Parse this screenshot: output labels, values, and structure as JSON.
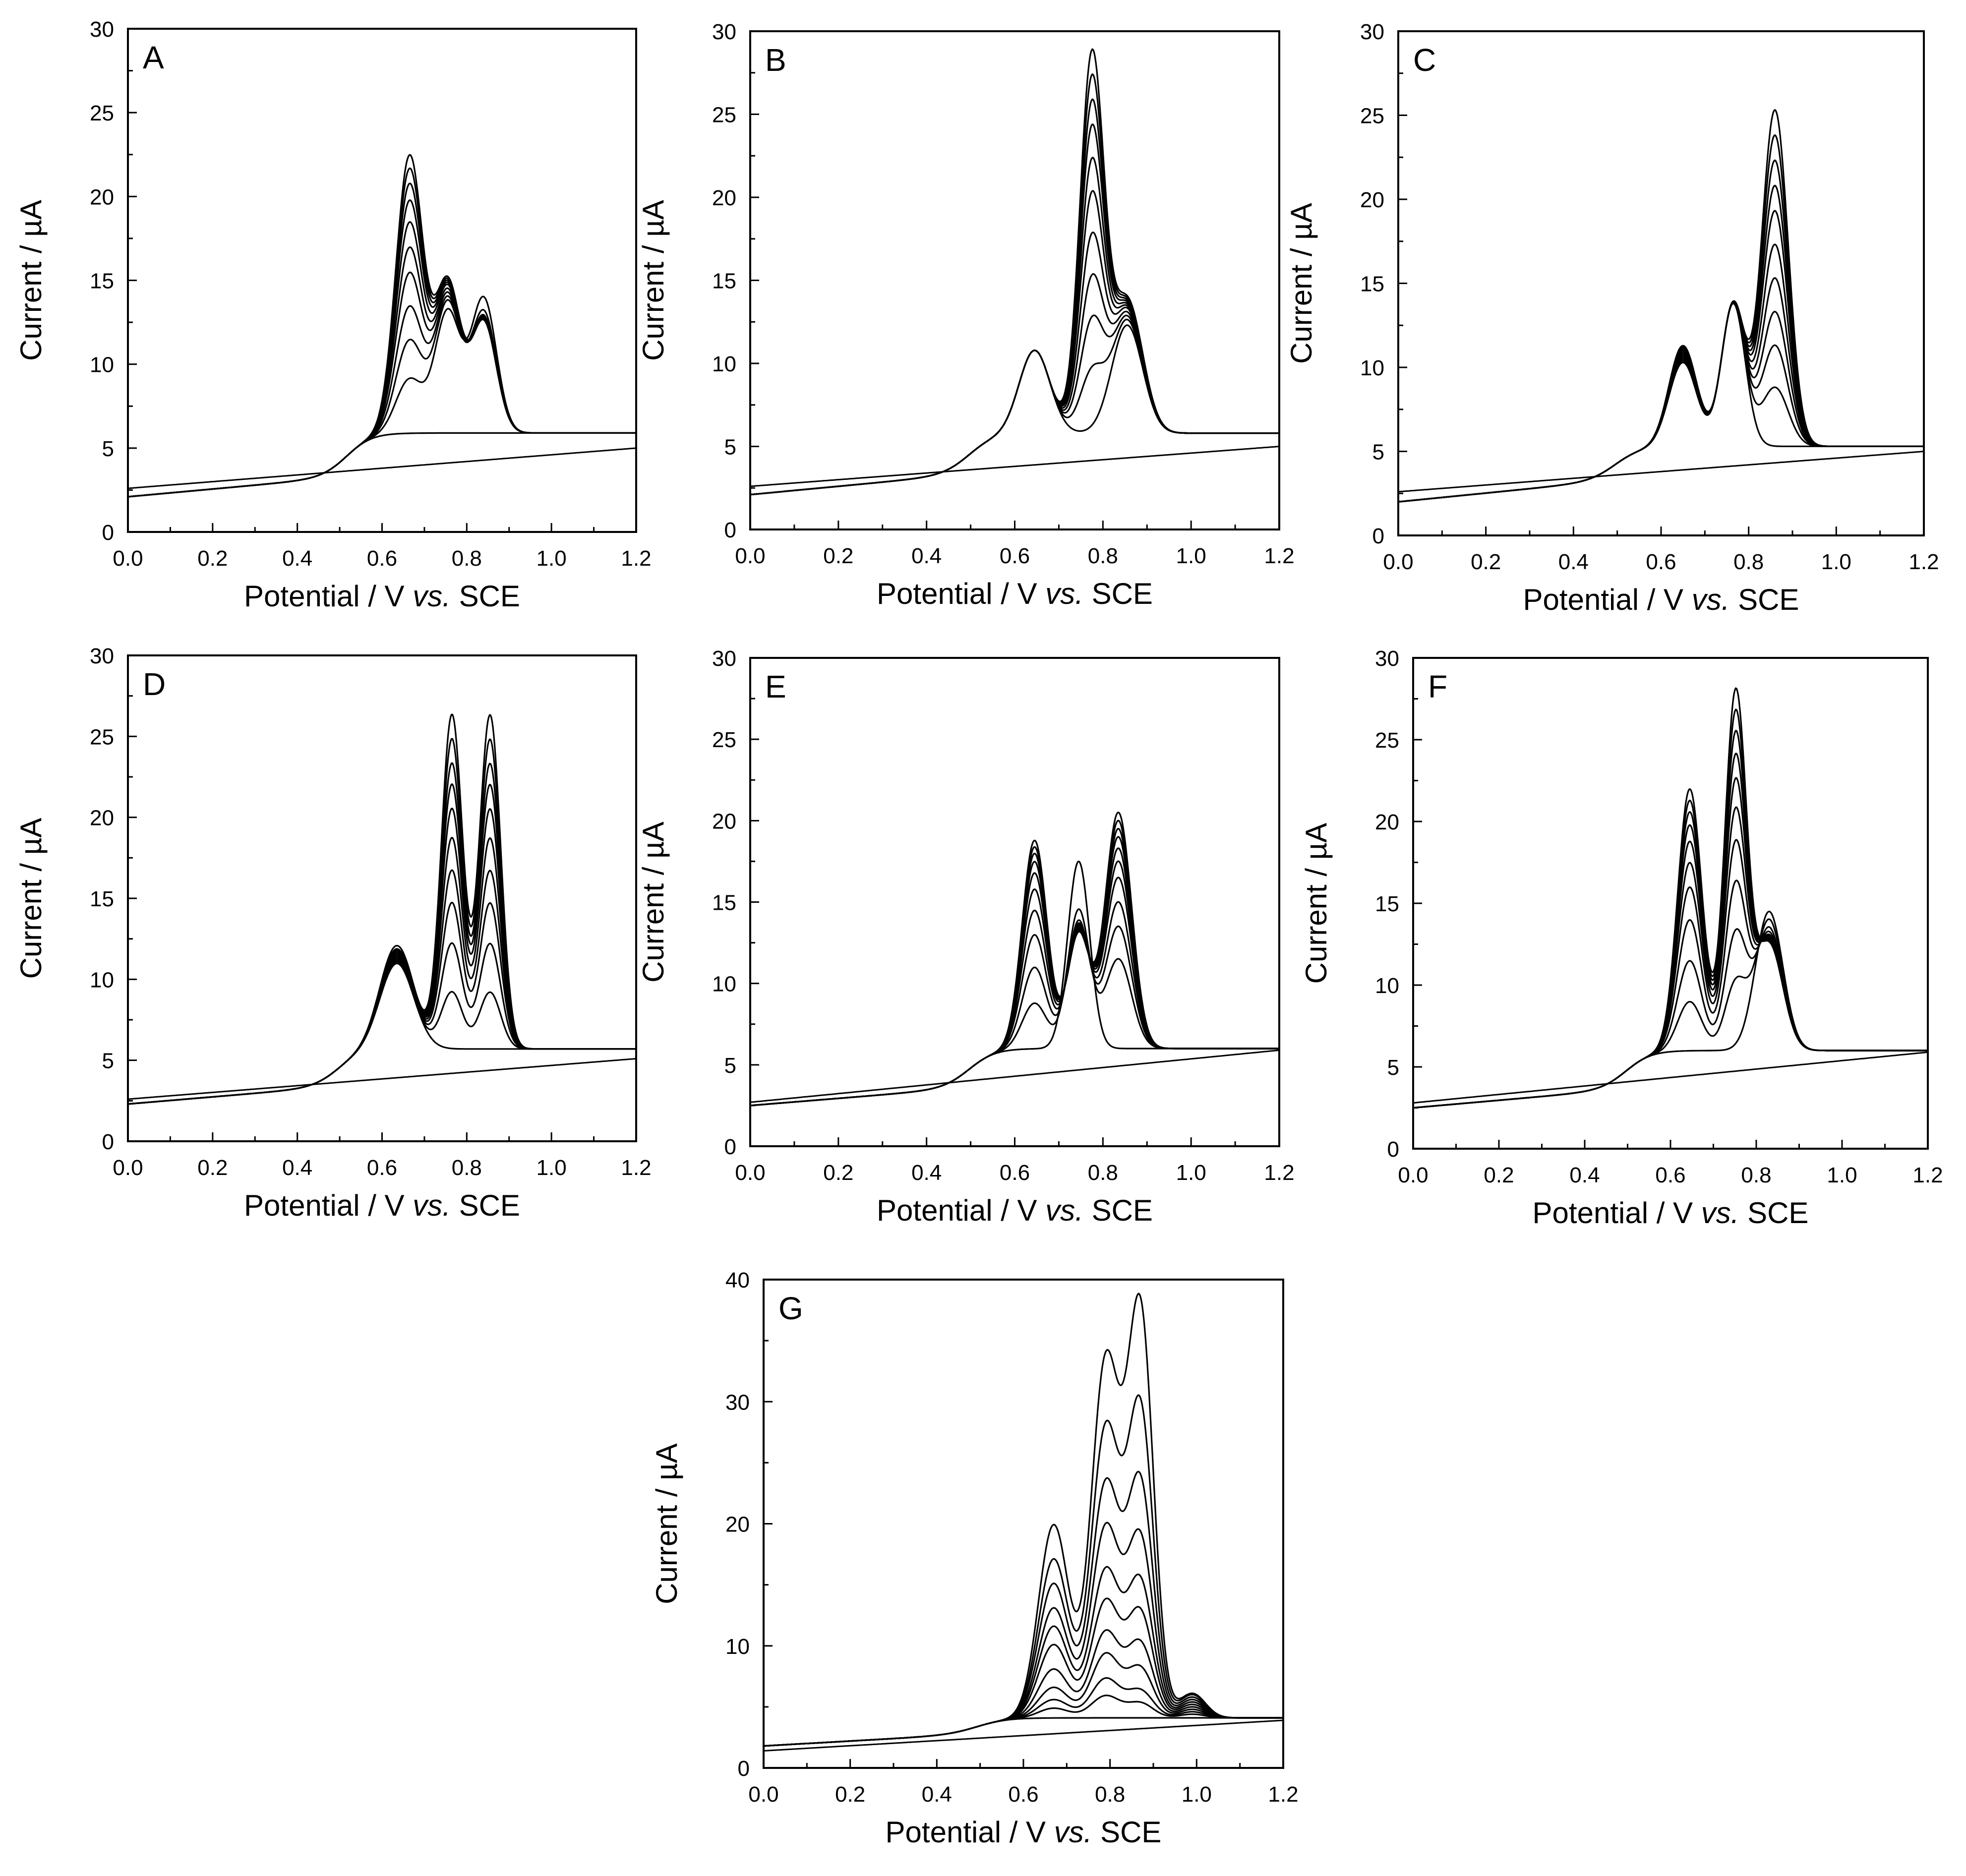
{
  "figure": {
    "xlabel_prefix": "Potential / V ",
    "xlabel_italic": "vs.",
    "xlabel_suffix": " SCE",
    "ylabel": "Current / µA",
    "line_color": "#000000",
    "background": "#ffffff"
  },
  "chart_data": [
    {
      "type": "line",
      "panel": "A",
      "xlim": [
        0.0,
        1.2
      ],
      "ylim": [
        0,
        30
      ],
      "xticks": [
        "0.0",
        "0.2",
        "0.4",
        "0.6",
        "0.8",
        "1.0",
        "1.2"
      ],
      "yticks": [
        "0",
        "5",
        "10",
        "15",
        "20",
        "25",
        "30"
      ],
      "baseline": {
        "start": 2.6,
        "end": 5.0,
        "slope_x0": 0.5,
        "sharp": 0,
        "exp": 0
      },
      "onset": {
        "center": 0.52,
        "width": 0.03,
        "plateau_end": 5.9,
        "y0": 2.1,
        "slope": 2.3
      },
      "series_count": 11,
      "peaks": [
        {
          "x": 0.665,
          "sigma": 0.032,
          "heights": [
            0,
            3.2,
            5.5,
            7.5,
            9.5,
            11.0,
            12.5,
            13.8,
            14.8,
            15.7,
            16.5
          ]
        },
        {
          "x": 0.755,
          "sigma": 0.03,
          "heights": [
            0,
            7.2,
            7.7,
            7.9,
            8.1,
            8.3,
            8.5,
            8.6,
            8.7,
            8.8,
            8.9
          ]
        },
        {
          "x": 0.84,
          "sigma": 0.03,
          "heights": [
            0,
            8.0,
            7.2,
            6.9,
            6.8,
            6.7,
            6.6,
            6.6,
            6.6,
            6.6,
            6.6
          ]
        }
      ]
    },
    {
      "type": "line",
      "panel": "B",
      "xlim": [
        0.0,
        1.2
      ],
      "ylim": [
        0,
        30
      ],
      "xticks": [
        "0.0",
        "0.2",
        "0.4",
        "0.6",
        "0.8",
        "1.0",
        "1.2"
      ],
      "yticks": [
        "0",
        "5",
        "10",
        "15",
        "20",
        "25",
        "30"
      ],
      "baseline": {
        "start": 2.6,
        "end": 5.0,
        "slope_x0": 0.5,
        "sharp": 0,
        "exp": 0
      },
      "onset": {
        "center": 0.5,
        "width": 0.03,
        "plateau_end": 5.8,
        "y0": 2.1,
        "slope": 2.5
      },
      "series_count": 11,
      "peaks": [
        {
          "x": 0.645,
          "sigma": 0.035,
          "heights": [
            5.0,
            5.0,
            5.0,
            5.0,
            5.0,
            5.0,
            5.0,
            5.0,
            5.0,
            5.0,
            5.0
          ]
        },
        {
          "x": 0.775,
          "sigma": 0.027,
          "heights": [
            0,
            3.5,
            6.5,
            9.0,
            11.5,
            14.0,
            16.0,
            18.0,
            19.5,
            21.0,
            22.5
          ]
        },
        {
          "x": 0.855,
          "sigma": 0.035,
          "heights": [
            6.5,
            6.8,
            7.0,
            7.2,
            7.4,
            7.5,
            7.6,
            7.7,
            7.8,
            7.9,
            8.0
          ]
        }
      ]
    },
    {
      "type": "line",
      "panel": "C",
      "xlim": [
        0.0,
        1.2
      ],
      "ylim": [
        0,
        30
      ],
      "xticks": [
        "0.0",
        "0.2",
        "0.4",
        "0.6",
        "0.8",
        "1.0",
        "1.2"
      ],
      "yticks": [
        "0",
        "5",
        "10",
        "15",
        "20",
        "25",
        "30"
      ],
      "baseline": {
        "start": 2.6,
        "end": 5.0,
        "slope_x0": 0.5,
        "sharp": 0,
        "exp": 0
      },
      "onset": {
        "center": 0.5,
        "width": 0.03,
        "plateau_end": 5.3,
        "y0": 2.0,
        "slope": 2.6
      },
      "series_count": 11,
      "peaks": [
        {
          "x": 0.65,
          "sigma": 0.032,
          "heights": [
            5.0,
            5.1,
            5.2,
            5.3,
            5.4,
            5.5,
            5.6,
            5.7,
            5.8,
            5.9,
            6.0
          ]
        },
        {
          "x": 0.765,
          "sigma": 0.027,
          "heights": [
            8.5,
            8.5,
            8.5,
            8.5,
            8.5,
            8.5,
            8.5,
            8.5,
            8.5,
            8.5,
            8.5
          ]
        },
        {
          "x": 0.86,
          "sigma": 0.03,
          "heights": [
            0,
            3.5,
            6.0,
            8.0,
            10.0,
            12.0,
            14.0,
            15.5,
            17.0,
            18.5,
            20.0
          ]
        }
      ]
    },
    {
      "type": "line",
      "panel": "D",
      "xlim": [
        0.0,
        1.2
      ],
      "ylim": [
        0,
        30
      ],
      "xticks": [
        "0.0",
        "0.2",
        "0.4",
        "0.6",
        "0.8",
        "1.0",
        "1.2"
      ],
      "yticks": [
        "0",
        "5",
        "10",
        "15",
        "20",
        "25",
        "30"
      ],
      "baseline": {
        "start": 2.6,
        "end": 5.1,
        "slope_x0": 0.5,
        "sharp": 0,
        "exp": 0
      },
      "onset": {
        "center": 0.5,
        "width": 0.03,
        "plateau_end": 5.7,
        "y0": 2.3,
        "slope": 2.2
      },
      "series_count": 11,
      "peaks": [
        {
          "x": 0.635,
          "sigma": 0.04,
          "heights": [
            5.3,
            5.4,
            5.5,
            5.6,
            5.7,
            5.8,
            5.9,
            6.0,
            6.1,
            6.2,
            6.4
          ]
        },
        {
          "x": 0.765,
          "sigma": 0.025,
          "heights": [
            0,
            3.5,
            6.5,
            9.0,
            11.0,
            13.0,
            14.8,
            16.3,
            17.6,
            19.1,
            20.6
          ]
        },
        {
          "x": 0.855,
          "sigma": 0.025,
          "heights": [
            0,
            3.5,
            6.5,
            9.0,
            11.0,
            13.0,
            14.8,
            16.3,
            17.6,
            19.1,
            20.6
          ]
        }
      ]
    },
    {
      "type": "line",
      "panel": "E",
      "xlim": [
        0.0,
        1.2
      ],
      "ylim": [
        0,
        30
      ],
      "xticks": [
        "0.0",
        "0.2",
        "0.4",
        "0.6",
        "0.8",
        "1.0",
        "1.2"
      ],
      "yticks": [
        "0",
        "5",
        "10",
        "15",
        "20",
        "25",
        "30"
      ],
      "baseline": {
        "start": 2.7,
        "end": 5.9,
        "slope_x0": 0.5,
        "sharp": 0,
        "exp": 0
      },
      "onset": {
        "center": 0.5,
        "width": 0.03,
        "plateau_end": 6.0,
        "y0": 2.5,
        "slope": 2.2
      },
      "series_count": 11,
      "peaks": [
        {
          "x": 0.645,
          "sigma": 0.028,
          "heights": [
            0,
            2.8,
            5.0,
            7.0,
            8.5,
            9.8,
            10.8,
            11.5,
            12.0,
            12.4,
            12.8
          ]
        },
        {
          "x": 0.745,
          "sigma": 0.025,
          "heights": [
            11.5,
            8.5,
            7.8,
            7.6,
            7.5,
            7.4,
            7.3,
            7.2,
            7.1,
            7.0,
            7.0
          ]
        },
        {
          "x": 0.835,
          "sigma": 0.03,
          "heights": [
            0,
            5.5,
            7.5,
            9.0,
            10.5,
            11.5,
            12.3,
            13.0,
            13.5,
            14.0,
            14.5
          ]
        }
      ]
    },
    {
      "type": "line",
      "panel": "F",
      "xlim": [
        0.0,
        1.2
      ],
      "ylim": [
        0,
        30
      ],
      "xticks": [
        "0.0",
        "0.2",
        "0.4",
        "0.6",
        "0.8",
        "1.0",
        "1.2"
      ],
      "yticks": [
        "0",
        "5",
        "10",
        "15",
        "20",
        "25",
        "30"
      ],
      "baseline": {
        "start": 2.8,
        "end": 5.9,
        "slope_x0": 0.5,
        "sharp": 0,
        "exp": 0
      },
      "onset": {
        "center": 0.5,
        "width": 0.03,
        "plateau_end": 6.0,
        "y0": 2.5,
        "slope": 2.3
      },
      "series_count": 11,
      "peaks": [
        {
          "x": 0.645,
          "sigma": 0.028,
          "heights": [
            0,
            3.0,
            5.5,
            8.0,
            10.0,
            11.5,
            12.8,
            13.8,
            14.6,
            15.3,
            16.0
          ]
        },
        {
          "x": 0.752,
          "sigma": 0.025,
          "heights": [
            0,
            4.0,
            7.0,
            10.0,
            12.5,
            14.5,
            16.3,
            17.8,
            19.2,
            20.5,
            21.8
          ]
        },
        {
          "x": 0.83,
          "sigma": 0.032,
          "heights": [
            8.5,
            8.0,
            7.5,
            7.2,
            7.0,
            6.9,
            6.8,
            6.7,
            6.6,
            6.5,
            6.5
          ]
        }
      ]
    },
    {
      "type": "line",
      "panel": "G",
      "xlim": [
        0.0,
        1.2
      ],
      "ylim": [
        0,
        40
      ],
      "xticks": [
        "0.0",
        "0.2",
        "0.4",
        "0.6",
        "0.8",
        "1.0",
        "1.2"
      ],
      "yticks": [
        "0",
        "10",
        "20",
        "30",
        "40"
      ],
      "baseline": {
        "start": 1.4,
        "end": 3.9,
        "slope_x0": 0.5,
        "sharp": 1,
        "exp": 1
      },
      "onset": {
        "center": 0.5,
        "width": 0.035,
        "plateau_end": 4.1,
        "y0": 1.8,
        "slope": 2.0
      },
      "series_count": 11,
      "peaks": [
        {
          "x": 0.67,
          "sigma": 0.035,
          "heights": [
            0,
            0.8,
            1.5,
            2.5,
            4.0,
            6.0,
            7.5,
            9.0,
            11.0,
            13.0,
            15.8
          ]
        },
        {
          "x": 0.79,
          "sigma": 0.033,
          "heights": [
            0,
            1.8,
            3.2,
            5.2,
            7.0,
            9.5,
            12.0,
            15.5,
            19.0,
            23.5,
            29.0
          ]
        },
        {
          "x": 0.87,
          "sigma": 0.03,
          "heights": [
            0,
            1.2,
            2.2,
            4.0,
            6.0,
            8.5,
            11.0,
            14.5,
            19.0,
            25.0,
            33.0
          ]
        },
        {
          "x": 0.99,
          "sigma": 0.03,
          "heights": [
            0,
            0.3,
            0.5,
            0.7,
            0.9,
            1.1,
            1.3,
            1.5,
            1.7,
            1.9,
            2.0
          ]
        }
      ]
    }
  ]
}
